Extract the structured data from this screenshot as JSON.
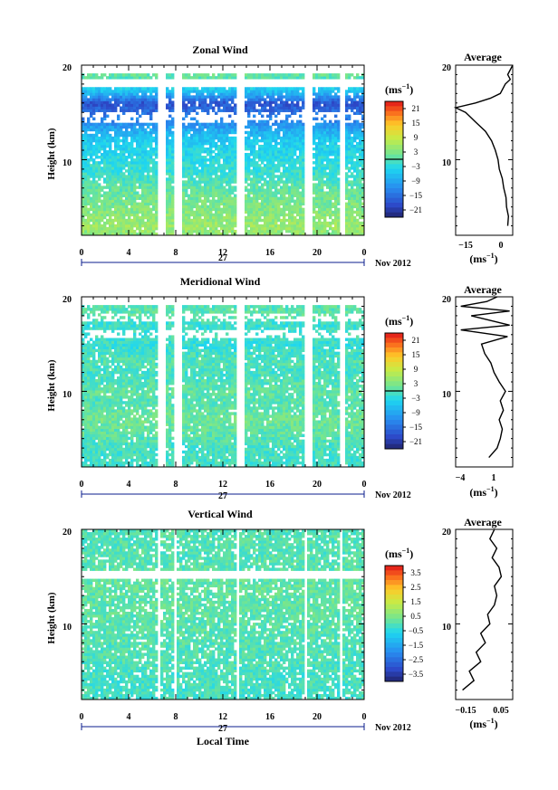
{
  "chart_data": [
    {
      "type": "heatmap",
      "title": "Zonal Wind",
      "ylabel": "Height (km)",
      "ylim": [
        2,
        20
      ],
      "yticks": [
        10,
        20
      ],
      "xticks": [
        "0",
        "4",
        "8",
        "12",
        "16",
        "20",
        "0"
      ],
      "date_day": "27",
      "date_label": "Nov 2012",
      "colorbar": {
        "unit_label": "(ms",
        "unit_exp": "−1",
        "ticks": [
          "21",
          "15",
          "9",
          "3",
          "−3",
          "−9",
          "−15",
          "−21"
        ],
        "range": [
          -24,
          24
        ]
      },
      "average": {
        "title": "Average",
        "ylim": [
          2,
          20
        ],
        "xlim": [
          -20,
          3
        ],
        "xticks": [
          "−15",
          "0"
        ],
        "yticks": [
          "10",
          "20"
        ],
        "xunit": "(ms",
        "xunit_exp": "−1",
        "profile": [
          [
            3,
            1
          ],
          [
            4,
            1.3
          ],
          [
            5,
            0.5
          ],
          [
            6,
            0.3
          ],
          [
            7,
            -0.6
          ],
          [
            8,
            -1.2
          ],
          [
            9,
            -2.4
          ],
          [
            10,
            -2.9
          ],
          [
            11,
            -4
          ],
          [
            12,
            -5.5
          ],
          [
            13,
            -8
          ],
          [
            14,
            -12
          ],
          [
            15,
            -16
          ],
          [
            15.5,
            -20
          ],
          [
            16,
            -12
          ],
          [
            16.5,
            -6
          ],
          [
            17,
            -2
          ],
          [
            18,
            0
          ],
          [
            18.5,
            2
          ],
          [
            19,
            1
          ],
          [
            20,
            3
          ]
        ]
      },
      "series": [
        {
          "name": "Zonal wind",
          "profile": [
            [
              2,
              4
            ],
            [
              3,
              5
            ],
            [
              4,
              4
            ],
            [
              5,
              3
            ],
            [
              6,
              2
            ],
            [
              7,
              1
            ],
            [
              8,
              -1
            ],
            [
              9,
              -2
            ],
            [
              10,
              -3
            ],
            [
              11,
              -4
            ],
            [
              12,
              -5
            ],
            [
              13,
              -8
            ],
            [
              14,
              -12
            ],
            [
              15,
              -15
            ],
            [
              16,
              -18
            ],
            [
              17,
              -8
            ],
            [
              18,
              -2
            ],
            [
              19,
              1
            ],
            [
              20,
              2
            ]
          ]
        }
      ]
    },
    {
      "type": "heatmap",
      "title": "Meridional Wind",
      "ylabel": "Height (km)",
      "ylim": [
        2,
        20
      ],
      "yticks": [
        10,
        20
      ],
      "xticks": [
        "0",
        "4",
        "8",
        "12",
        "16",
        "20",
        "0"
      ],
      "date_day": "27",
      "date_label": "Nov 2012",
      "colorbar": {
        "unit_label": "(ms",
        "unit_exp": "−1",
        "ticks": [
          "21",
          "15",
          "9",
          "3",
          "−3",
          "−9",
          "−15",
          "−21"
        ],
        "range": [
          -24,
          24
        ]
      },
      "average": {
        "title": "Average",
        "ylim": [
          2,
          20
        ],
        "xlim": [
          -4,
          1.5
        ],
        "xticks": [
          "−4",
          "1"
        ],
        "yticks": [
          "10",
          "20"
        ],
        "xunit": "(ms",
        "xunit_exp": "−1",
        "profile": [
          [
            3,
            -0.8
          ],
          [
            4,
            0
          ],
          [
            5,
            0.3
          ],
          [
            6,
            0.5
          ],
          [
            7,
            0.2
          ],
          [
            8,
            0.6
          ],
          [
            9,
            0.3
          ],
          [
            10,
            0.8
          ],
          [
            11,
            0.2
          ],
          [
            12,
            -0.3
          ],
          [
            13,
            -0.6
          ],
          [
            14,
            -1.2
          ],
          [
            15,
            -1.5
          ],
          [
            15.8,
            1
          ],
          [
            16.5,
            -3.5
          ],
          [
            17,
            1.2
          ],
          [
            18,
            -2.5
          ],
          [
            18.5,
            1.2
          ],
          [
            19,
            -3.5
          ],
          [
            19.5,
            -1
          ],
          [
            20,
            0
          ]
        ]
      },
      "series": [
        {
          "name": "Meridional wind",
          "profile": [
            [
              2,
              -1
            ],
            [
              3,
              -1
            ],
            [
              4,
              -1
            ],
            [
              5,
              0
            ],
            [
              6,
              1
            ],
            [
              7,
              2
            ],
            [
              8,
              1
            ],
            [
              9,
              0
            ],
            [
              10,
              1
            ],
            [
              11,
              0
            ],
            [
              12,
              -1
            ],
            [
              13,
              0
            ],
            [
              14,
              -1
            ],
            [
              15,
              -2
            ],
            [
              16,
              -1
            ],
            [
              17,
              -2
            ],
            [
              18,
              1
            ],
            [
              19,
              0
            ],
            [
              20,
              0
            ]
          ]
        }
      ]
    },
    {
      "type": "heatmap",
      "title": "Vertical Wind",
      "ylabel": "Height (km)",
      "xlabel": "Local Time",
      "ylim": [
        2,
        20
      ],
      "yticks": [
        10,
        20
      ],
      "xticks": [
        "0",
        "4",
        "8",
        "12",
        "16",
        "20",
        "0"
      ],
      "date_day": "27",
      "date_label": "Nov 2012",
      "colorbar": {
        "unit_label": "(ms",
        "unit_exp": "−1",
        "ticks": [
          "3.5",
          "2.5",
          "1.5",
          "0.5",
          "−0.5",
          "−1.5",
          "−2.5",
          "−3.5"
        ],
        "range": [
          -4,
          4
        ]
      },
      "average": {
        "title": "Average",
        "ylim": [
          2,
          20
        ],
        "xlim": [
          -0.15,
          0.1
        ],
        "xticks": [
          "−0.15",
          "0.05"
        ],
        "yticks": [
          "10",
          "20"
        ],
        "xunit": "(ms",
        "xunit_exp": "−1",
        "profile": [
          [
            3,
            -0.12
          ],
          [
            4,
            -0.07
          ],
          [
            5,
            -0.09
          ],
          [
            6,
            -0.04
          ],
          [
            7,
            -0.06
          ],
          [
            8,
            -0.02
          ],
          [
            9,
            -0.04
          ],
          [
            10,
            0
          ],
          [
            11,
            -0.01
          ],
          [
            12,
            0.02
          ],
          [
            13,
            0.03
          ],
          [
            14,
            0.02
          ],
          [
            15,
            0.05
          ],
          [
            16,
            0.04
          ],
          [
            17,
            0.01
          ],
          [
            18,
            0.03
          ],
          [
            19,
            0
          ],
          [
            20,
            0.02
          ]
        ]
      },
      "series": [
        {
          "name": "Vertical wind",
          "profile": [
            [
              2,
              -0.2
            ],
            [
              5,
              -0.1
            ],
            [
              8,
              0
            ],
            [
              11,
              0.1
            ],
            [
              14,
              0.2
            ],
            [
              17,
              0
            ],
            [
              20,
              0
            ]
          ]
        }
      ]
    }
  ]
}
